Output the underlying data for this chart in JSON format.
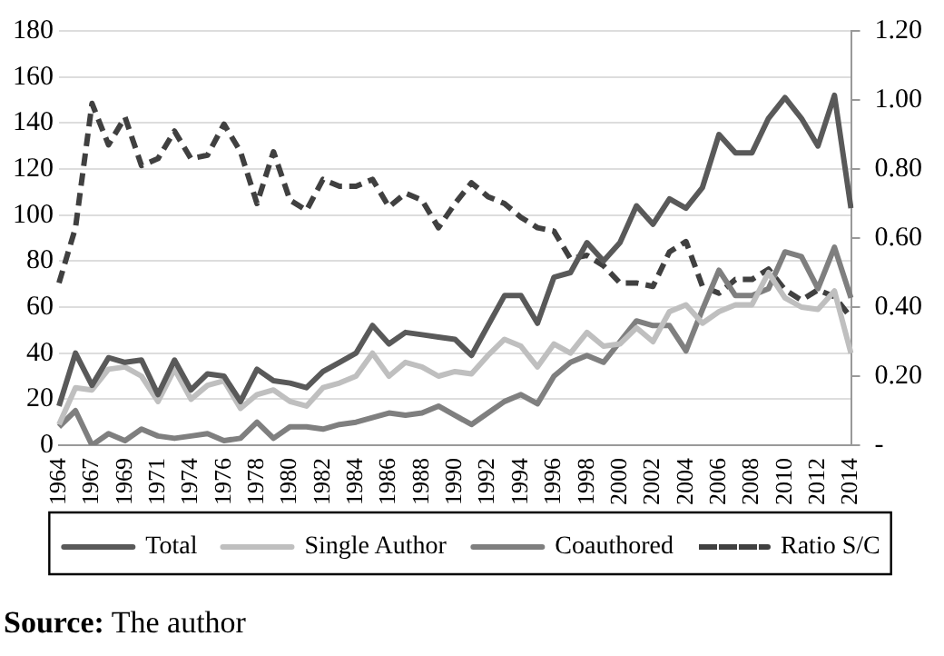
{
  "chart_data": {
    "type": "line",
    "categories": [
      "1964",
      null,
      "1967",
      null,
      "1969",
      null,
      "1971",
      null,
      "1974",
      null,
      "1976",
      null,
      "1978",
      null,
      "1980",
      null,
      "1982",
      null,
      "1984",
      null,
      "1986",
      null,
      "1988",
      null,
      "1990",
      null,
      "1992",
      null,
      "1994",
      null,
      "1996",
      null,
      "1998",
      null,
      "2000",
      null,
      "2002",
      null,
      "2004",
      null,
      "2006",
      null,
      "2008",
      null,
      "2010",
      null,
      "2012",
      null,
      "2014"
    ],
    "series": [
      {
        "name": "Total",
        "color": "#595959",
        "line_style": "solid",
        "values": [
          17,
          40,
          26,
          38,
          36,
          37,
          22,
          37,
          24,
          31,
          30,
          19,
          33,
          28,
          27,
          25,
          32,
          36,
          40,
          52,
          44,
          49,
          48,
          47,
          46,
          39,
          52,
          65,
          65,
          53,
          73,
          75,
          88,
          80,
          88,
          104,
          96,
          107,
          103,
          112,
          135,
          127,
          127,
          142,
          151,
          142,
          130,
          152,
          103
        ]
      },
      {
        "name": "Single Author",
        "color": "#bfbfbf",
        "line_style": "solid",
        "values": [
          9,
          25,
          24,
          33,
          34,
          30,
          19,
          33,
          20,
          26,
          28,
          16,
          22,
          24,
          19,
          17,
          25,
          27,
          30,
          40,
          30,
          36,
          34,
          30,
          32,
          31,
          39,
          46,
          43,
          34,
          44,
          40,
          49,
          43,
          44,
          51,
          45,
          58,
          61,
          53,
          58,
          61,
          61,
          75,
          64,
          60,
          59,
          67,
          40
        ]
      },
      {
        "name": "Coauthored",
        "color": "#7f7f7f",
        "line_style": "solid",
        "values": [
          8,
          15,
          0,
          5,
          2,
          7,
          4,
          3,
          4,
          5,
          2,
          3,
          10,
          3,
          8,
          8,
          7,
          9,
          10,
          12,
          14,
          13,
          14,
          17,
          13,
          9,
          14,
          19,
          22,
          18,
          30,
          36,
          39,
          36,
          45,
          54,
          52,
          52,
          41,
          59,
          76,
          65,
          65,
          68,
          84,
          82,
          68,
          86,
          64
        ]
      },
      {
        "name": "Ratio S/C",
        "color": "#404040",
        "line_style": "dashed",
        "axis": "y2",
        "values": [
          0.47,
          0.63,
          0.99,
          0.87,
          0.95,
          0.81,
          0.83,
          0.91,
          0.83,
          0.84,
          0.93,
          0.85,
          0.7,
          0.85,
          0.71,
          0.68,
          0.77,
          0.75,
          0.75,
          0.77,
          0.69,
          0.73,
          0.71,
          0.63,
          0.7,
          0.76,
          0.72,
          0.7,
          0.66,
          0.63,
          0.62,
          0.54,
          0.55,
          0.52,
          0.47,
          0.47,
          0.46,
          0.56,
          0.59,
          0.46,
          0.44,
          0.48,
          0.48,
          0.51,
          0.45,
          0.42,
          0.45,
          0.43,
          0.37
        ]
      }
    ],
    "ylim": [
      0,
      180
    ],
    "yticks": [
      0,
      20,
      40,
      60,
      80,
      100,
      120,
      140,
      160,
      180
    ],
    "y2lim": [
      0,
      1.2
    ],
    "y2ticks": [
      {
        "value": 0,
        "label": "-"
      },
      {
        "value": 0.2,
        "label": "0.20"
      },
      {
        "value": 0.4,
        "label": "0.40"
      },
      {
        "value": 0.6,
        "label": "0.60"
      },
      {
        "value": 0.8,
        "label": "0.80"
      },
      {
        "value": 1.0,
        "label": "1.00"
      },
      {
        "value": 1.2,
        "label": "1.20"
      }
    ],
    "grid": "y",
    "legend": "bottom",
    "marker": "none",
    "annotations": [
      "Source: The author"
    ]
  }
}
